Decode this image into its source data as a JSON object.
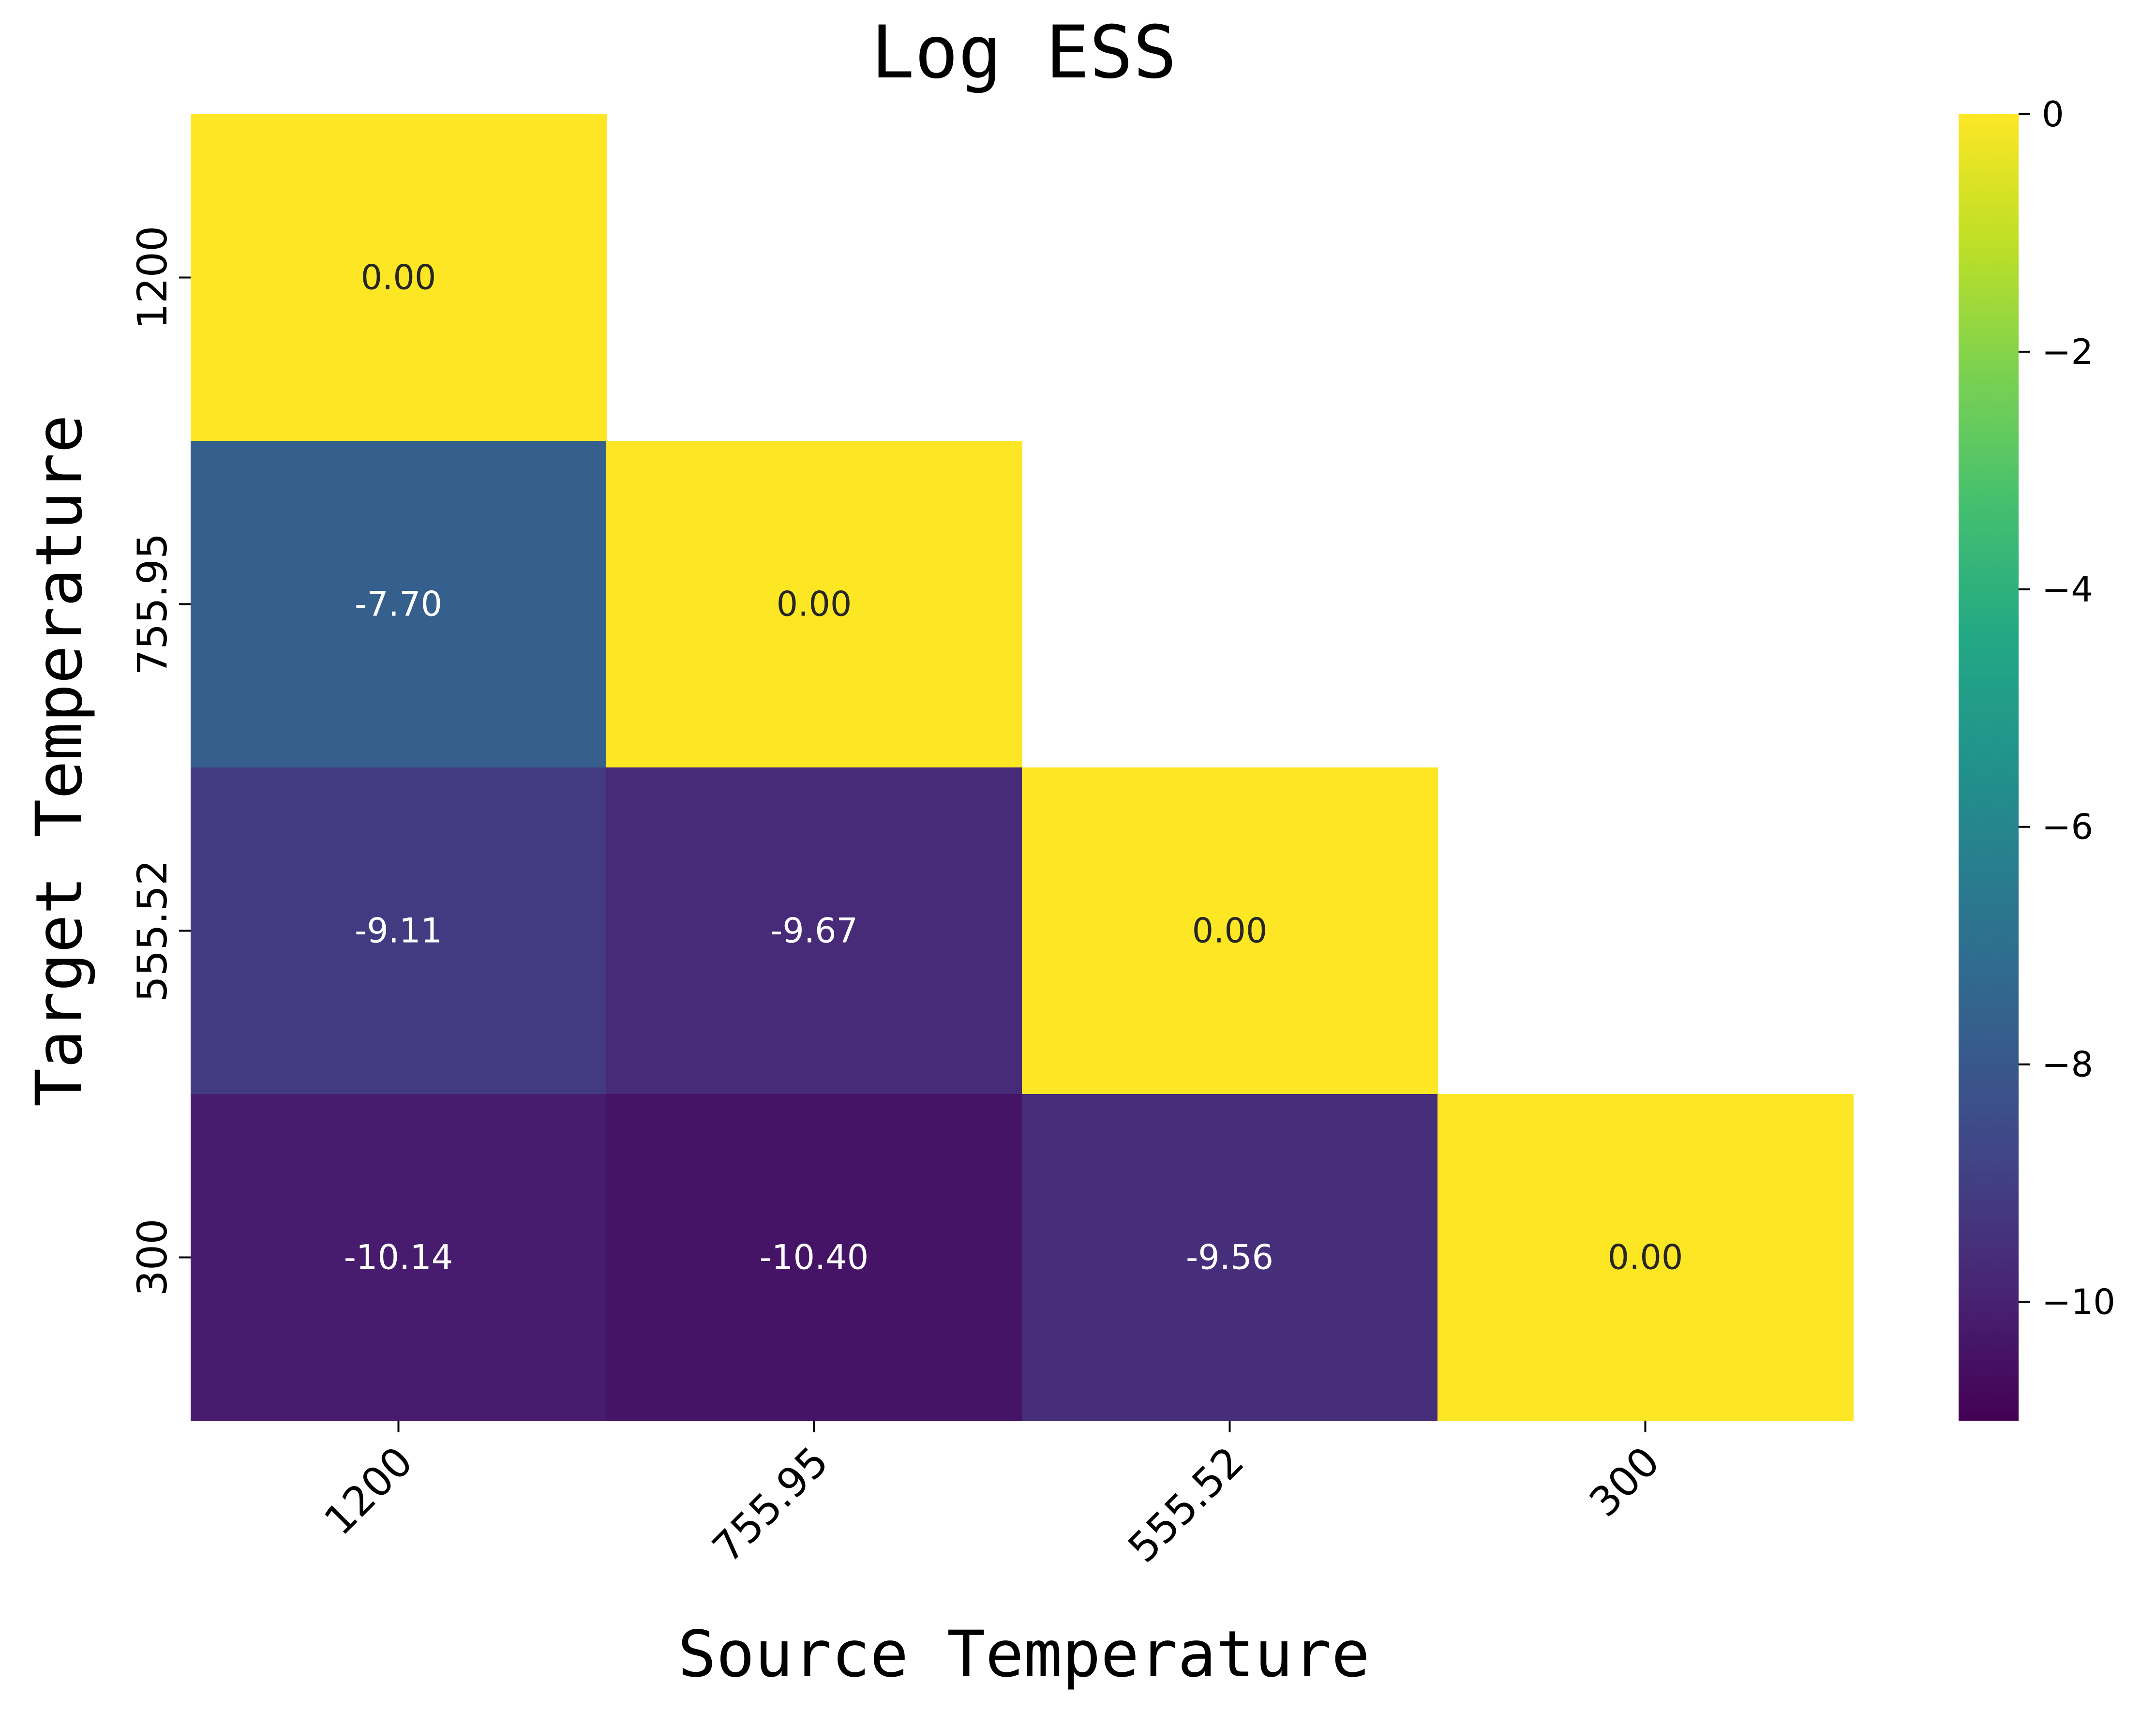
{
  "chart_data": {
    "type": "heatmap",
    "title": "Log ESS",
    "xlabel": "Source Temperature",
    "ylabel": "Target Temperature",
    "x_categories": [
      "1200",
      "755.95",
      "555.52",
      "300"
    ],
    "y_categories": [
      "1200",
      "755.95",
      "555.52",
      "300"
    ],
    "values": [
      [
        0.0,
        null,
        null,
        null
      ],
      [
        -7.7,
        0.0,
        null,
        null
      ],
      [
        -9.11,
        -9.67,
        0.0,
        null
      ],
      [
        -10.14,
        -10.4,
        -9.56,
        0.0
      ]
    ],
    "annotations": [
      [
        "0.00",
        null,
        null,
        null
      ],
      [
        "-7.70",
        "0.00",
        null,
        null
      ],
      [
        "-9.11",
        "-9.67",
        "0.00",
        null
      ],
      [
        "-10.14",
        "-10.40",
        "-9.56",
        "0.00"
      ]
    ],
    "mask": "upper triangle",
    "colormap": "viridis",
    "colorbar": {
      "vmin": -11,
      "vmax": 0,
      "ticks": [
        0,
        -2,
        -4,
        -6,
        -8,
        -10
      ],
      "tick_labels": [
        "0",
        "−2",
        "−4",
        "−6",
        "−8",
        "−10"
      ]
    },
    "x_tick_rotation": "45 degrees",
    "grid": false
  }
}
